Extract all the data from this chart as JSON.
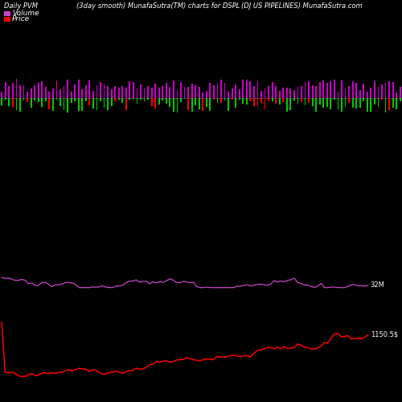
{
  "title_left": "Daily PVM",
  "title_center": "(3day smooth) MunafaSutra(TM) charts for DSPL",
  "title_right": "(DJ US PIPELINES) MunafaSutra.com",
  "legend_volume": "Volume",
  "legend_price": "Price",
  "label_volume_value": "32M",
  "label_price_value": "1150.5$",
  "background_color": "#000000",
  "text_color": "#ffffff",
  "pvm_bar_color": "#cc00cc",
  "red_bar_color": "#ff0000",
  "green_bar_color": "#00cc00",
  "price_line_color": "#ff0000",
  "volume_line_color": "#cc44cc",
  "n_bars": 110,
  "title_fontsize": 6,
  "legend_fontsize": 6.5,
  "label_fontsize": 6
}
